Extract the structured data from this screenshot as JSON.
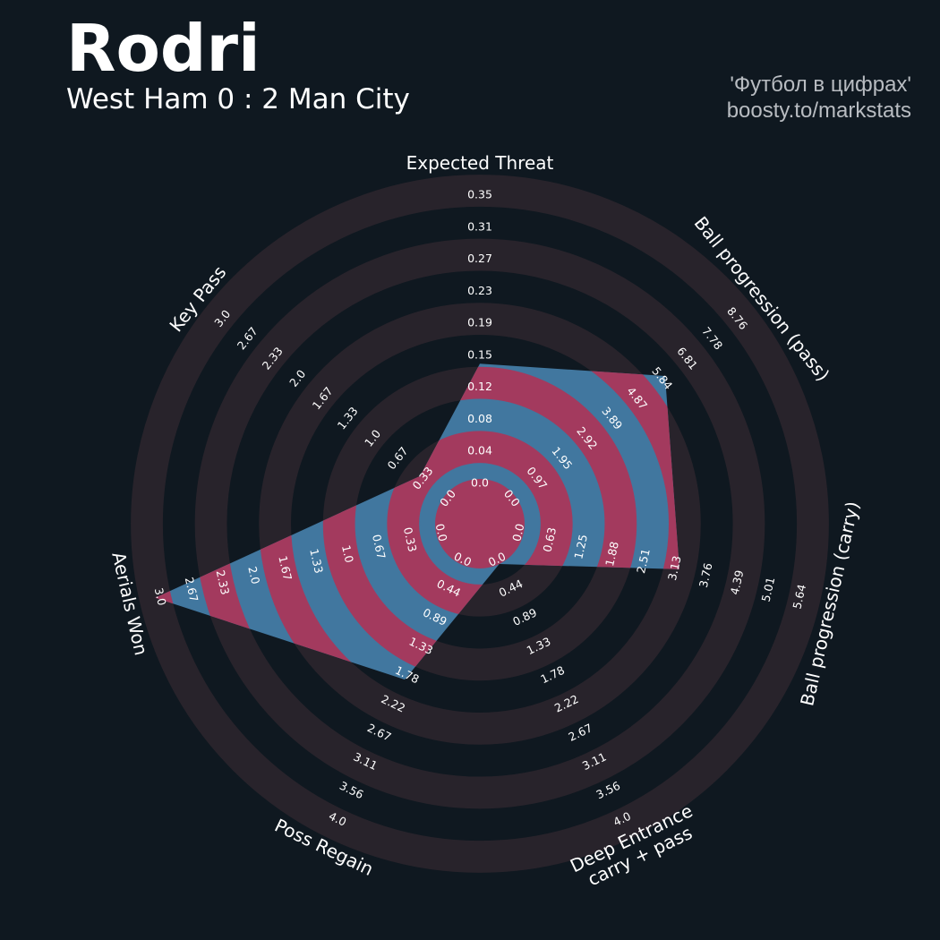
{
  "header": {
    "title": "Rodri",
    "subtitle": "West Ham 0 : 2 Man City",
    "credit_line1": "'Футбол в цифрах'",
    "credit_line2": "boosty.to/markstats"
  },
  "colors": {
    "background": "#0f1820",
    "ring_band": "#28232b",
    "fill_primary": "#a33a5e",
    "fill_secondary": "#41779f",
    "text": "#ffffff"
  },
  "chart_data": {
    "type": "radar",
    "params": [
      {
        "label": "Expected Threat",
        "label_lines": [
          "Expected Threat"
        ],
        "value": 0.14,
        "ticks": [
          "0.0",
          "0.04",
          "0.08",
          "0.12",
          "0.15",
          "0.19",
          "0.23",
          "0.27",
          "0.31",
          "0.35"
        ]
      },
      {
        "label": "Ball progression (pass)",
        "label_lines": [
          "Ball progression (pass)"
        ],
        "value": 5.84,
        "ticks": [
          "0.0",
          "0.97",
          "1.95",
          "2.92",
          "3.89",
          "4.87",
          "5.84",
          "6.81",
          "7.78",
          "8.76"
        ]
      },
      {
        "label": "Ball progression (carry)",
        "label_lines": [
          "Ball progression (carry)"
        ],
        "value": 3.13,
        "ticks": [
          "0.0",
          "0.63",
          "1.25",
          "1.88",
          "2.51",
          "3.13",
          "3.76",
          "4.39",
          "5.01",
          "5.64"
        ]
      },
      {
        "label": "Deep Entrance carry + pass",
        "label_lines": [
          "Deep Entrance",
          "carry + pass"
        ],
        "value": 0.0,
        "ticks": [
          "0.0",
          "0.44",
          "0.89",
          "1.33",
          "1.78",
          "2.22",
          "2.67",
          "3.11",
          "3.56",
          "4.0"
        ]
      },
      {
        "label": "Poss Regain",
        "label_lines": [
          "Poss Regain"
        ],
        "value": 1.78,
        "ticks": [
          "0.0",
          "0.44",
          "0.89",
          "1.33",
          "1.78",
          "2.22",
          "2.67",
          "3.11",
          "3.56",
          "4.0"
        ]
      },
      {
        "label": "Aerials Won",
        "label_lines": [
          "Aerials Won"
        ],
        "value": 3.0,
        "ticks": [
          "0.0",
          "0.33",
          "0.67",
          "1.0",
          "1.33",
          "1.67",
          "2.0",
          "2.33",
          "2.67",
          "3.0"
        ]
      },
      {
        "label": "Key Pass",
        "label_lines": [
          "Key Pass"
        ],
        "value": 0.33,
        "ticks": [
          "0.0",
          "0.33",
          "0.67",
          "1.0",
          "1.33",
          "1.67",
          "2.0",
          "2.33",
          "2.67",
          "3.0"
        ]
      }
    ]
  }
}
